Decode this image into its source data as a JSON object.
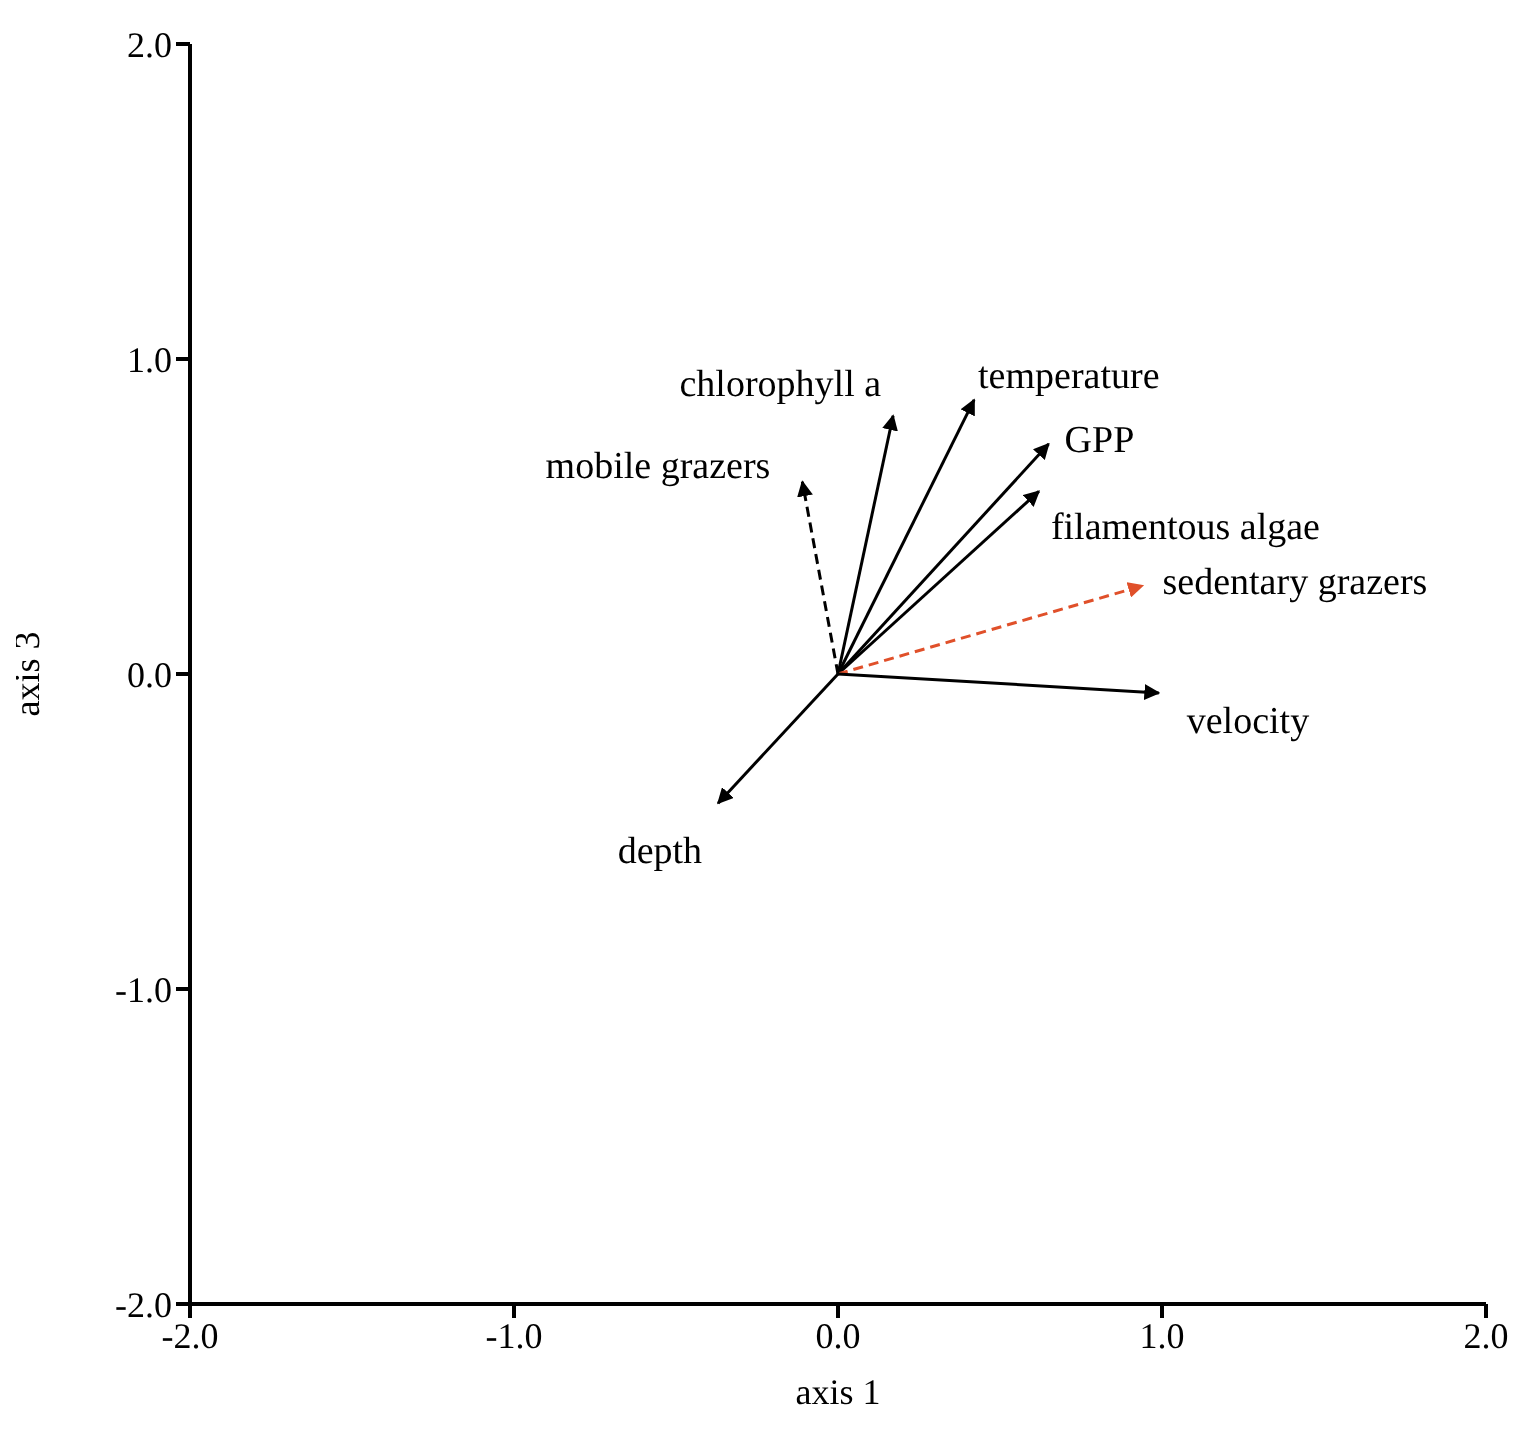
{
  "chart_data": {
    "type": "line",
    "xlabel": "axis 1",
    "ylabel": "axis 3",
    "xlim": [
      -2,
      2
    ],
    "ylim": [
      -2,
      2
    ],
    "xticks": [
      {
        "value": -2,
        "label": "-2.0"
      },
      {
        "value": -1,
        "label": "-1.0"
      },
      {
        "value": 0,
        "label": "0.0"
      },
      {
        "value": 1,
        "label": "1.0"
      },
      {
        "value": 2,
        "label": "2.0"
      }
    ],
    "yticks": [
      {
        "value": -2,
        "label": "-2.0"
      },
      {
        "value": -1,
        "label": "-1.0"
      },
      {
        "value": 0,
        "label": "0.0"
      },
      {
        "value": 1,
        "label": "1.0"
      },
      {
        "value": 2,
        "label": "2.0"
      }
    ],
    "grid": false,
    "legend": false,
    "marker": "none",
    "line_style": "solid",
    "series": [
      {
        "name": "chlorophyll a",
        "color": "#000000",
        "x": [
          0,
          0.17
        ],
        "values": [
          0,
          0.82
        ]
      },
      {
        "name": "temperature",
        "color": "#000000",
        "x": [
          0,
          0.42
        ],
        "values": [
          0,
          0.87
        ]
      },
      {
        "name": "GPP",
        "color": "#000000",
        "x": [
          0,
          0.65
        ],
        "values": [
          0,
          0.73
        ]
      },
      {
        "name": "filamentous algae",
        "color": "#000000",
        "x": [
          0,
          0.62
        ],
        "values": [
          0,
          0.58
        ]
      },
      {
        "name": "sedentary grazers",
        "color": "#e0502a",
        "line_style": "dashed",
        "x": [
          0,
          0.94
        ],
        "values": [
          0,
          0.28
        ]
      },
      {
        "name": "velocity",
        "color": "#000000",
        "x": [
          0,
          0.99
        ],
        "values": [
          0,
          -0.06
        ]
      },
      {
        "name": "mobile grazers",
        "color": "#000000",
        "line_style": "dashed",
        "x": [
          0,
          -0.11
        ],
        "values": [
          0,
          0.61
        ]
      },
      {
        "name": "depth",
        "color": "#000000",
        "x": [
          0,
          -0.37
        ],
        "values": [
          0,
          -0.41
        ]
      }
    ]
  }
}
